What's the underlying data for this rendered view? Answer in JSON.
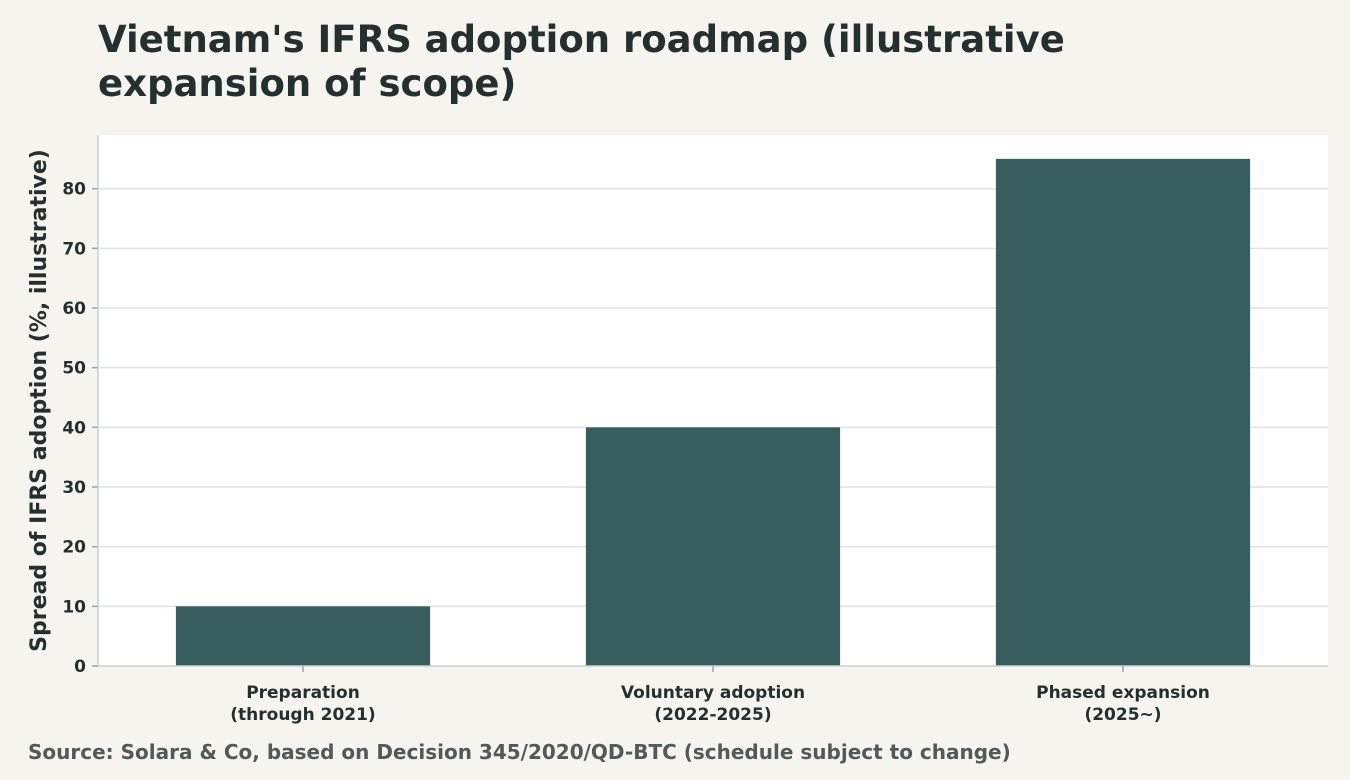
{
  "chart_data": {
    "type": "bar",
    "title": "Vietnam's IFRS adoption roadmap (illustrative expansion of scope)",
    "xlabel": "",
    "ylabel": "Spread of IFRS adoption (%, illustrative)",
    "categories": [
      [
        "Preparation",
        "(through 2021)"
      ],
      [
        "Voluntary adoption",
        "(2022-2025)"
      ],
      [
        "Phased expansion",
        "(2025~)"
      ]
    ],
    "values": [
      10,
      40,
      85
    ],
    "ylim": [
      0,
      89
    ],
    "yticks": [
      0,
      10,
      20,
      30,
      40,
      50,
      60,
      70,
      80
    ],
    "grid": true,
    "legend": "none",
    "source": "Source: Solara & Co, based on Decision 345/2020/QD-BTC (schedule subject to change)"
  },
  "colors": {
    "bar": "#385d5e",
    "background": "#f5f4ef",
    "plot_background": "#ffffff",
    "grid": "#dde3e6",
    "text": "#24302f"
  }
}
